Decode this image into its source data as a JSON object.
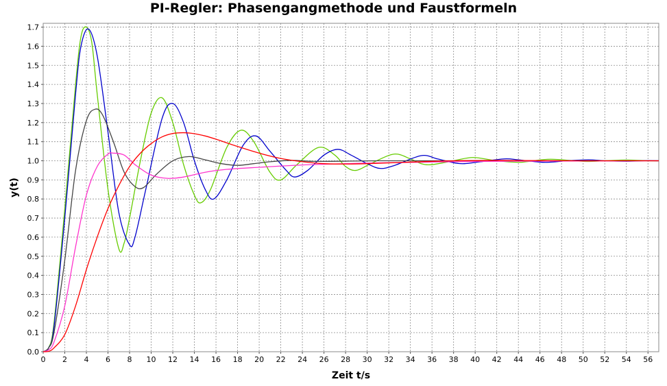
{
  "chart_data": {
    "type": "line",
    "title": "PI-Regler: Phasengangmethode und Faustformeln",
    "xlabel": "Zeit t/s",
    "ylabel": "y(t)",
    "xlim": [
      0,
      57
    ],
    "ylim": [
      0,
      1.72
    ],
    "x_ticks": [
      "0",
      "2",
      "4",
      "6",
      "8",
      "10",
      "12",
      "14",
      "16",
      "18",
      "20",
      "22",
      "24",
      "26",
      "28",
      "30",
      "32",
      "34",
      "36",
      "38",
      "40",
      "42",
      "44",
      "46",
      "48",
      "50",
      "52",
      "54",
      "56"
    ],
    "y_ticks": [
      "0.0",
      "0.1",
      "0.2",
      "0.3",
      "0.4",
      "0.5",
      "0.6",
      "0.7",
      "0.8",
      "0.9",
      "1.0",
      "1.1",
      "1.2",
      "1.3",
      "1.4",
      "1.5",
      "1.6",
      "1.7"
    ],
    "grid": true,
    "series": [
      {
        "color": "#66cc00",
        "points": [
          [
            0,
            0
          ],
          [
            0.5,
            0.02
          ],
          [
            1,
            0.15
          ],
          [
            2,
            0.75
          ],
          [
            3,
            1.4
          ],
          [
            3.5,
            1.65
          ],
          [
            4,
            1.7
          ],
          [
            4.5,
            1.62
          ],
          [
            5,
            1.35
          ],
          [
            6,
            0.85
          ],
          [
            7,
            0.54
          ],
          [
            7.5,
            0.57
          ],
          [
            8,
            0.7
          ],
          [
            9,
            1.0
          ],
          [
            10,
            1.25
          ],
          [
            11,
            1.33
          ],
          [
            12,
            1.2
          ],
          [
            13,
            0.98
          ],
          [
            14,
            0.82
          ],
          [
            14.6,
            0.78
          ],
          [
            15.5,
            0.85
          ],
          [
            17,
            1.07
          ],
          [
            18.3,
            1.16
          ],
          [
            19.5,
            1.1
          ],
          [
            21,
            0.94
          ],
          [
            22,
            0.9
          ],
          [
            23.5,
            0.98
          ],
          [
            25.5,
            1.07
          ],
          [
            27,
            1.03
          ],
          [
            28,
            0.97
          ],
          [
            29,
            0.95
          ],
          [
            30.5,
            0.99
          ],
          [
            32.5,
            1.035
          ],
          [
            34,
            1.01
          ],
          [
            35,
            0.985
          ],
          [
            36,
            0.98
          ],
          [
            38,
            1.0
          ],
          [
            39.8,
            1.017
          ],
          [
            42,
            1.0
          ],
          [
            44,
            0.992
          ],
          [
            45,
            0.997
          ],
          [
            47,
            1.008
          ],
          [
            50,
            0.997
          ],
          [
            52,
            1.0
          ],
          [
            54,
            1.004
          ],
          [
            56,
            1.0
          ],
          [
            57,
            1.0
          ]
        ]
      },
      {
        "color": "#0000cc",
        "points": [
          [
            0,
            0
          ],
          [
            0.5,
            0.02
          ],
          [
            1,
            0.13
          ],
          [
            2,
            0.7
          ],
          [
            3,
            1.35
          ],
          [
            3.5,
            1.6
          ],
          [
            4.2,
            1.69
          ],
          [
            5,
            1.55
          ],
          [
            6,
            1.15
          ],
          [
            7,
            0.73
          ],
          [
            8,
            0.56
          ],
          [
            8.5,
            0.6
          ],
          [
            9.5,
            0.85
          ],
          [
            11,
            1.22
          ],
          [
            12,
            1.3
          ],
          [
            13,
            1.2
          ],
          [
            14,
            1.0
          ],
          [
            15,
            0.85
          ],
          [
            15.8,
            0.8
          ],
          [
            17,
            0.9
          ],
          [
            18.5,
            1.08
          ],
          [
            19.7,
            1.13
          ],
          [
            21,
            1.05
          ],
          [
            22.5,
            0.95
          ],
          [
            23.3,
            0.915
          ],
          [
            24.5,
            0.95
          ],
          [
            26,
            1.03
          ],
          [
            27.3,
            1.06
          ],
          [
            28.5,
            1.03
          ],
          [
            30,
            0.985
          ],
          [
            31.2,
            0.96
          ],
          [
            32.5,
            0.975
          ],
          [
            35,
            1.027
          ],
          [
            36.5,
            1.01
          ],
          [
            38,
            0.99
          ],
          [
            39,
            0.985
          ],
          [
            40.5,
            0.995
          ],
          [
            42.7,
            1.01
          ],
          [
            44,
            1.005
          ],
          [
            46,
            0.993
          ],
          [
            47,
            0.993
          ],
          [
            48.5,
            1.0
          ],
          [
            50.5,
            1.005
          ],
          [
            52,
            1.0
          ],
          [
            54,
            0.998
          ],
          [
            56,
            1.001
          ],
          [
            57,
            1.0
          ]
        ]
      },
      {
        "color": "#444444",
        "points": [
          [
            0,
            0
          ],
          [
            0.5,
            0.02
          ],
          [
            1,
            0.1
          ],
          [
            2,
            0.48
          ],
          [
            3,
            0.95
          ],
          [
            4,
            1.21
          ],
          [
            4.8,
            1.27
          ],
          [
            5.5,
            1.24
          ],
          [
            6.5,
            1.1
          ],
          [
            7.5,
            0.94
          ],
          [
            8.5,
            0.865
          ],
          [
            9.3,
            0.86
          ],
          [
            10.5,
            0.93
          ],
          [
            12,
            1.0
          ],
          [
            13.5,
            1.022
          ],
          [
            15,
            1.005
          ],
          [
            16.5,
            0.985
          ],
          [
            18,
            0.976
          ],
          [
            19.5,
            0.985
          ],
          [
            21,
            0.995
          ],
          [
            23,
            1.002
          ],
          [
            25,
            0.997
          ],
          [
            28,
            0.998
          ],
          [
            31,
            1.0
          ],
          [
            35,
            1.0
          ],
          [
            40,
            1.0
          ],
          [
            57,
            1.0
          ]
        ]
      },
      {
        "color": "#ff33cc",
        "points": [
          [
            0,
            0
          ],
          [
            0.5,
            0.01
          ],
          [
            1,
            0.05
          ],
          [
            2,
            0.24
          ],
          [
            3,
            0.55
          ],
          [
            4,
            0.82
          ],
          [
            5,
            0.97
          ],
          [
            6,
            1.035
          ],
          [
            6.5,
            1.04
          ],
          [
            7.5,
            1.03
          ],
          [
            8.5,
            0.98
          ],
          [
            10,
            0.925
          ],
          [
            11.5,
            0.908
          ],
          [
            13,
            0.915
          ],
          [
            15,
            0.94
          ],
          [
            17,
            0.955
          ],
          [
            20,
            0.966
          ],
          [
            24,
            0.978
          ],
          [
            28,
            0.985
          ],
          [
            32,
            0.99
          ],
          [
            38,
            0.995
          ],
          [
            44,
            0.998
          ],
          [
            50,
            0.999
          ],
          [
            57,
            1.0
          ]
        ]
      },
      {
        "color": "#ff0000",
        "points": [
          [
            0,
            0
          ],
          [
            0.5,
            0.002
          ],
          [
            1,
            0.02
          ],
          [
            2,
            0.09
          ],
          [
            3,
            0.24
          ],
          [
            4,
            0.43
          ],
          [
            5,
            0.6
          ],
          [
            6,
            0.75
          ],
          [
            7,
            0.87
          ],
          [
            8,
            0.97
          ],
          [
            9,
            1.04
          ],
          [
            10,
            1.09
          ],
          [
            11,
            1.125
          ],
          [
            12,
            1.143
          ],
          [
            13,
            1.147
          ],
          [
            14,
            1.142
          ],
          [
            15,
            1.13
          ],
          [
            16,
            1.113
          ],
          [
            18,
            1.075
          ],
          [
            20,
            1.04
          ],
          [
            22,
            1.012
          ],
          [
            24,
            0.995
          ],
          [
            26,
            0.985
          ],
          [
            28,
            0.983
          ],
          [
            30,
            0.985
          ],
          [
            34,
            0.993
          ],
          [
            38,
            1.0
          ],
          [
            42,
            1.002
          ],
          [
            46,
            1.001
          ],
          [
            50,
            1.0
          ],
          [
            57,
            1.0
          ]
        ]
      }
    ]
  }
}
